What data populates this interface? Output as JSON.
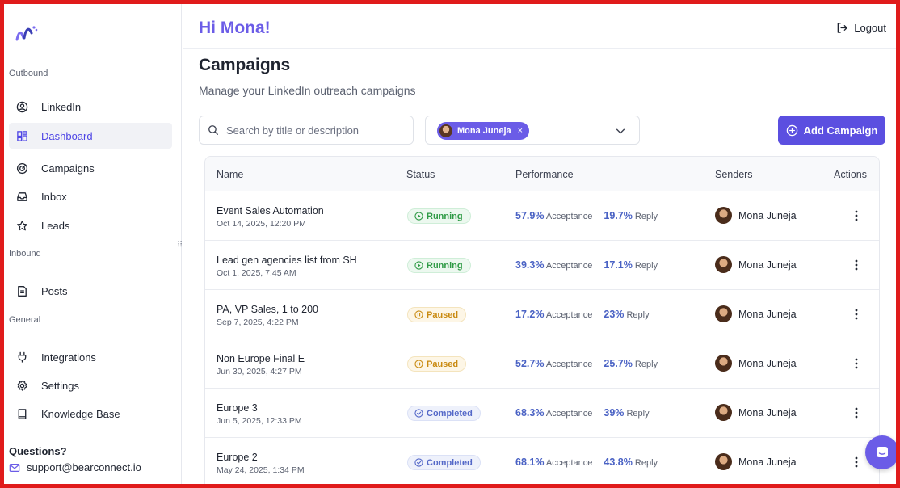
{
  "sidebar": {
    "sections": [
      "Outbound",
      "Inbound",
      "General"
    ],
    "items": [
      {
        "label": "LinkedIn",
        "icon": "user-circle-icon"
      },
      {
        "label": "Dashboard",
        "icon": "dashboard-grid-icon",
        "active": true
      },
      {
        "label": "Campaigns",
        "icon": "target-icon"
      },
      {
        "label": "Inbox",
        "icon": "inbox-icon"
      },
      {
        "label": "Leads",
        "icon": "star-icon"
      },
      {
        "label": "Posts",
        "icon": "document-icon"
      },
      {
        "label": "Integrations",
        "icon": "plug-icon"
      },
      {
        "label": "Settings",
        "icon": "gear-icon"
      },
      {
        "label": "Knowledge Base",
        "icon": "book-icon"
      }
    ],
    "questions_label": "Questions?",
    "support_email": "support@bearconnect.io"
  },
  "header": {
    "greeting": "Hi Mona!",
    "logout_label": "Logout"
  },
  "page": {
    "title": "Campaigns",
    "subtitle": "Manage your LinkedIn outreach campaigns"
  },
  "filters": {
    "search_placeholder": "Search by title or description",
    "search_value": "",
    "selected_sender": "Mona Juneja",
    "chip_remove": "×"
  },
  "add_button_label": "Add Campaign",
  "table": {
    "headers": [
      "Name",
      "Status",
      "Performance",
      "Senders",
      "Actions"
    ],
    "acceptance_label": "Acceptance",
    "reply_label": "Reply",
    "rows": [
      {
        "name": "Event Sales Automation",
        "date": "Oct 14, 2025, 12:20 PM",
        "status": "Running",
        "acceptance": "57.9%",
        "reply": "19.7%",
        "sender": "Mona Juneja"
      },
      {
        "name": "Lead gen agencies list from SH",
        "date": "Oct 1, 2025, 7:45 AM",
        "status": "Running",
        "acceptance": "39.3%",
        "reply": "17.1%",
        "sender": "Mona Juneja"
      },
      {
        "name": "PA, VP Sales, 1 to 200",
        "date": "Sep 7, 2025, 4:22 PM",
        "status": "Paused",
        "acceptance": "17.2%",
        "reply": "23%",
        "sender": "Mona Juneja"
      },
      {
        "name": "Non Europe Final E",
        "date": "Jun 30, 2025, 4:27 PM",
        "status": "Paused",
        "acceptance": "52.7%",
        "reply": "25.7%",
        "sender": "Mona Juneja"
      },
      {
        "name": "Europe 3",
        "date": "Jun 5, 2025, 12:33 PM",
        "status": "Completed",
        "acceptance": "68.3%",
        "reply": "39%",
        "sender": "Mona Juneja"
      },
      {
        "name": "Europe 2",
        "date": "May 24, 2025, 1:34 PM",
        "status": "Completed",
        "acceptance": "68.1%",
        "reply": "43.8%",
        "sender": "Mona Juneja"
      }
    ]
  },
  "colors": {
    "accent": "#6b5ce7",
    "primary_button": "#5b4fe0",
    "running": "#2e9a45",
    "paused": "#c98a10",
    "completed": "#5468c8",
    "frame": "#e01b1b"
  }
}
